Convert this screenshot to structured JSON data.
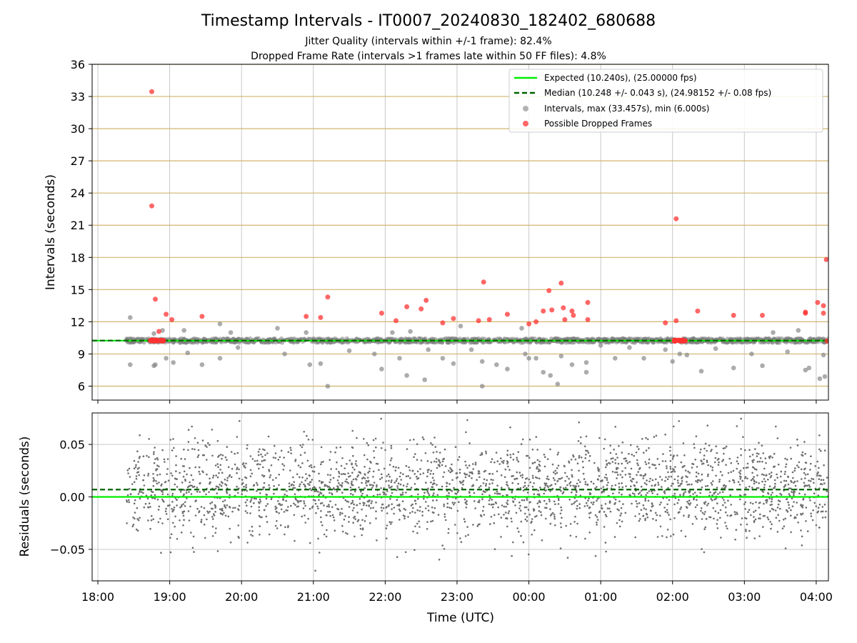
{
  "chart_data": [
    {
      "type": "scatter",
      "title": "Timestamp Intervals - IT0007_20240830_182402_680688",
      "subtitle_lines": [
        "Jitter Quality (intervals within +/-1 frame): 82.4%",
        "Dropped Frame Rate (intervals >1 frames late within 50 FF files): 4.8%"
      ],
      "ylabel": "Intervals (seconds)",
      "xlabel": "",
      "x_unit": "hours since 18:00 UTC on the axis clock (tick labels shown)",
      "xlim": [
        -0.08,
        10.17
      ],
      "ylim": [
        4.7,
        36
      ],
      "yticks": [
        6,
        9,
        12,
        15,
        18,
        21,
        24,
        27,
        30,
        33,
        36
      ],
      "xtick_labels": [
        "18:00",
        "19:00",
        "20:00",
        "21:00",
        "22:00",
        "23:00",
        "00:00",
        "01:00",
        "02:00",
        "03:00",
        "04:00"
      ],
      "grid": true,
      "legend_position": "top-right",
      "colors": {
        "expected": "#00ee00",
        "median": "#006400",
        "intervals": "#808080",
        "dropped": "#ff3333",
        "hgrid": "#d2b56e"
      },
      "series": [
        {
          "name": "Expected (10.240s), (25.00000 fps)",
          "kind": "hline",
          "y": 10.24
        },
        {
          "name": "Median (10.248 +/- 0.043 s), (24.98152 +/- 0.08 fps)",
          "kind": "hline-dashed",
          "y": 10.248
        },
        {
          "name": "Intervals, max (33.457s), min (6.000s)",
          "kind": "points",
          "x_range": [
            0.4,
            10.17
          ],
          "band_y": [
            10.05,
            10.45
          ],
          "outliers": [
            [
              0.45,
              12.4
            ],
            [
              0.45,
              8.0
            ],
            [
              0.78,
              10.9
            ],
            [
              0.78,
              7.9
            ],
            [
              0.8,
              8.0
            ],
            [
              0.9,
              11.2
            ],
            [
              0.95,
              8.6
            ],
            [
              1.05,
              8.2
            ],
            [
              1.2,
              11.2
            ],
            [
              1.25,
              9.1
            ],
            [
              1.45,
              8.0
            ],
            [
              1.7,
              11.8
            ],
            [
              1.7,
              8.6
            ],
            [
              1.85,
              11.0
            ],
            [
              1.95,
              9.6
            ],
            [
              2.5,
              11.4
            ],
            [
              2.6,
              9.0
            ],
            [
              2.9,
              11.0
            ],
            [
              2.95,
              8.0
            ],
            [
              3.1,
              8.1
            ],
            [
              3.2,
              6.0
            ],
            [
              3.5,
              9.3
            ],
            [
              3.85,
              9.0
            ],
            [
              3.95,
              7.6
            ],
            [
              4.1,
              11.0
            ],
            [
              4.2,
              8.6
            ],
            [
              4.3,
              7.0
            ],
            [
              4.35,
              11.1
            ],
            [
              4.55,
              6.6
            ],
            [
              4.6,
              9.4
            ],
            [
              4.8,
              8.6
            ],
            [
              4.95,
              8.1
            ],
            [
              5.05,
              11.6
            ],
            [
              5.2,
              9.4
            ],
            [
              5.35,
              6.0
            ],
            [
              5.35,
              8.3
            ],
            [
              5.55,
              8.0
            ],
            [
              5.7,
              7.6
            ],
            [
              5.9,
              11.4
            ],
            [
              5.95,
              9.0
            ],
            [
              6.0,
              8.6
            ],
            [
              6.1,
              8.6
            ],
            [
              6.2,
              7.3
            ],
            [
              6.3,
              7.0
            ],
            [
              6.4,
              6.2
            ],
            [
              6.45,
              8.8
            ],
            [
              6.6,
              8.0
            ],
            [
              6.8,
              7.3
            ],
            [
              6.8,
              8.2
            ],
            [
              7.0,
              9.8
            ],
            [
              7.2,
              8.6
            ],
            [
              7.4,
              9.6
            ],
            [
              7.6,
              8.6
            ],
            [
              7.9,
              9.4
            ],
            [
              8.0,
              8.3
            ],
            [
              8.1,
              9.0
            ],
            [
              8.2,
              8.9
            ],
            [
              8.4,
              7.4
            ],
            [
              8.6,
              9.5
            ],
            [
              8.85,
              7.7
            ],
            [
              9.1,
              9.0
            ],
            [
              9.25,
              7.9
            ],
            [
              9.4,
              11.0
            ],
            [
              9.6,
              9.2
            ],
            [
              9.75,
              11.2
            ],
            [
              9.85,
              7.5
            ],
            [
              9.9,
              7.7
            ],
            [
              10.05,
              6.7
            ],
            [
              10.12,
              6.9
            ],
            [
              10.1,
              8.9
            ]
          ]
        },
        {
          "name": "Possible Dropped Frames",
          "kind": "points",
          "points": [
            [
              0.75,
              33.45
            ],
            [
              0.75,
              22.8
            ],
            [
              0.8,
              14.1
            ],
            [
              0.85,
              11.1
            ],
            [
              0.95,
              12.7
            ],
            [
              1.03,
              12.2
            ],
            [
              1.45,
              12.5
            ],
            [
              2.9,
              12.5
            ],
            [
              3.1,
              12.4
            ],
            [
              3.2,
              14.3
            ],
            [
              3.95,
              12.8
            ],
            [
              4.15,
              12.1
            ],
            [
              4.3,
              13.4
            ],
            [
              4.5,
              13.2
            ],
            [
              4.57,
              14.0
            ],
            [
              4.8,
              11.9
            ],
            [
              4.95,
              12.3
            ],
            [
              5.3,
              12.1
            ],
            [
              5.37,
              15.7
            ],
            [
              5.45,
              12.2
            ],
            [
              5.7,
              12.7
            ],
            [
              6.0,
              11.8
            ],
            [
              6.1,
              12.0
            ],
            [
              6.2,
              13.0
            ],
            [
              6.28,
              14.9
            ],
            [
              6.32,
              13.1
            ],
            [
              6.45,
              15.6
            ],
            [
              6.48,
              13.3
            ],
            [
              6.5,
              12.2
            ],
            [
              6.6,
              13.0
            ],
            [
              6.62,
              12.6
            ],
            [
              6.82,
              13.8
            ],
            [
              6.82,
              12.2
            ],
            [
              7.9,
              11.9
            ],
            [
              8.05,
              21.6
            ],
            [
              8.05,
              12.1
            ],
            [
              8.35,
              13.0
            ],
            [
              8.85,
              12.6
            ],
            [
              9.25,
              12.6
            ],
            [
              9.85,
              12.9
            ],
            [
              9.85,
              12.8
            ],
            [
              10.02,
              13.8
            ],
            [
              10.1,
              13.5
            ],
            [
              10.1,
              12.8
            ],
            [
              10.14,
              17.8
            ],
            [
              10.15,
              10.2
            ]
          ],
          "clusters": [
            {
              "x_range": [
                0.72,
                0.95
              ],
              "y": 10.25
            },
            {
              "x_range": [
                8.02,
                8.18
              ],
              "y": 10.25
            }
          ]
        }
      ]
    },
    {
      "type": "scatter",
      "title": "",
      "xlabel": "Time (UTC)",
      "ylabel": "Residuals (seconds)",
      "xlim": [
        -0.08,
        10.17
      ],
      "ylim": [
        -0.08,
        0.08
      ],
      "yticks": [
        -0.05,
        0.0,
        0.05
      ],
      "ytick_labels": [
        "−0.05",
        "0.00",
        "0.05"
      ],
      "xtick_labels": [
        "18:00",
        "19:00",
        "20:00",
        "21:00",
        "22:00",
        "23:00",
        "00:00",
        "01:00",
        "02:00",
        "03:00",
        "04:00"
      ],
      "grid": true,
      "series": [
        {
          "name": "",
          "kind": "hline",
          "y": 0.0
        },
        {
          "name": "",
          "kind": "hline-dashed",
          "y": 0.007
        },
        {
          "name": "",
          "kind": "residual-points",
          "x_range": [
            0.4,
            10.17
          ],
          "approx_std": 0.022,
          "approx_count": 2600
        }
      ]
    }
  ]
}
